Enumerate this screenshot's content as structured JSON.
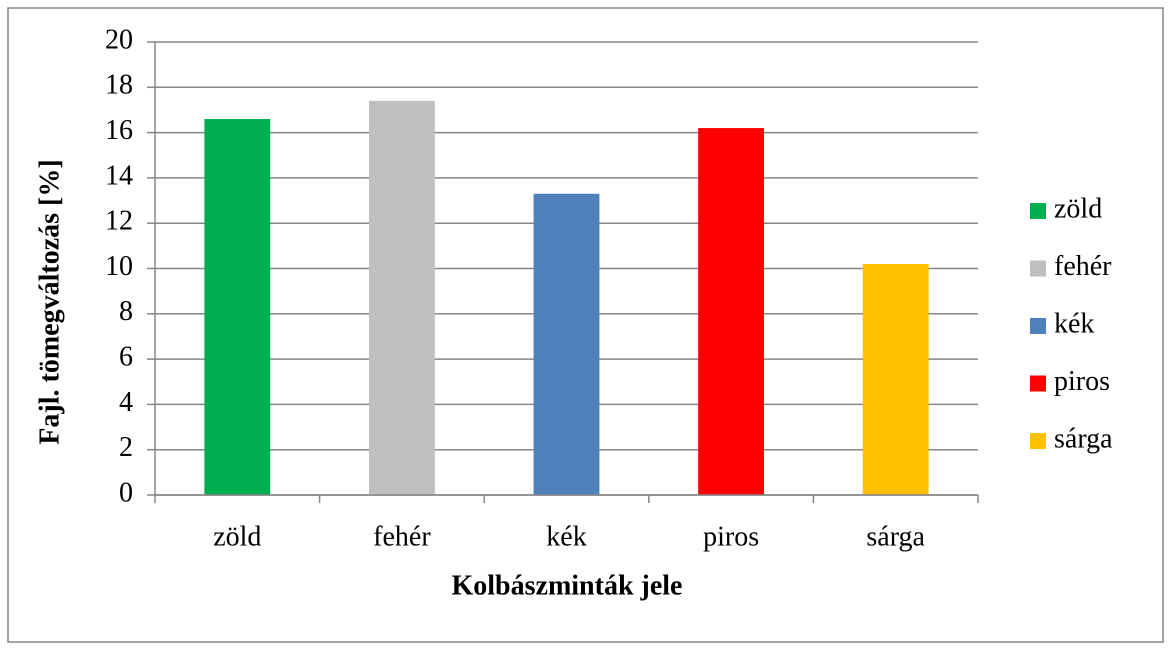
{
  "chart_data": {
    "type": "bar",
    "x_label": "Kolbászminták jele",
    "y_label": "Fajl. tömegváltozás [%]",
    "categories": [
      "zöld",
      "fehér",
      "kék",
      "piros",
      "sárga"
    ],
    "values": [
      16.6,
      17.4,
      13.3,
      16.2,
      10.2
    ],
    "colors": [
      "#00b050",
      "#bfbfbf",
      "#4f81bd",
      "#ff0000",
      "#ffc000"
    ],
    "ylim": [
      0,
      20
    ],
    "yticks": [
      0,
      2,
      4,
      6,
      8,
      10,
      12,
      14,
      16,
      18,
      20
    ],
    "grid": true,
    "legend": "right"
  }
}
